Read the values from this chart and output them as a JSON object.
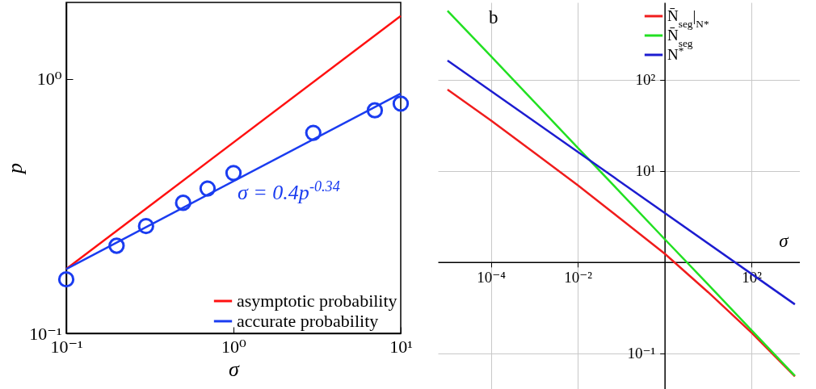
{
  "chart_data": [
    {
      "type": "line",
      "xlabel": "σ",
      "ylabel": "p",
      "log": "xy",
      "xlim": [
        0.1,
        10
      ],
      "ylim": [
        0.1,
        2
      ],
      "xticks": [
        {
          "value": 0.1,
          "label": "10⁻¹"
        },
        {
          "value": 1,
          "label": "10⁰"
        },
        {
          "value": 10,
          "label": "10¹"
        }
      ],
      "yticks": [
        {
          "value": 0.1,
          "label": "10⁻¹"
        },
        {
          "value": 1,
          "label": "10⁰"
        }
      ],
      "legend": "bottom right",
      "annotations": [
        "σ = 0.4p$^{-0.34}$"
      ],
      "series": [
        {
          "name": "asymptotic probability",
          "color": "#ff1010",
          "x": [
            0.1,
            10
          ],
          "values": [
            0.179,
            1.77
          ]
        },
        {
          "name": "accurate probability",
          "color": "#1a3cf0",
          "x": [
            0.1,
            10
          ],
          "values": [
            0.179,
            0.877
          ]
        },
        {
          "type": "scatter",
          "marker": "circle",
          "color": "#1a3cf0",
          "x": [
            0.1,
            0.2,
            0.3,
            0.5,
            0.7,
            1,
            3,
            7,
            10
          ],
          "values": [
            0.163,
            0.221,
            0.264,
            0.326,
            0.371,
            0.427,
            0.614,
            0.753,
            0.8
          ]
        }
      ]
    },
    {
      "type": "line",
      "xlabel": "σ",
      "log": "xy",
      "xlim": [
        6e-06,
        1300
      ],
      "ylim": [
        0.04,
        700
      ],
      "grid": true,
      "xticks": [
        {
          "value": 0.0001,
          "label": "10⁻⁴"
        },
        {
          "value": 0.01,
          "label": "10⁻²"
        },
        {
          "value": 100,
          "label": "10²"
        }
      ],
      "yticks": [
        {
          "value": 0.1,
          "label": "10⁻¹"
        },
        {
          "value": 10,
          "label": "10¹"
        },
        {
          "value": 100,
          "label": "10²"
        }
      ],
      "legend": "top right",
      "annotations": [
        "b"
      ],
      "series": [
        {
          "name": "N̄$_{seg}$|$_{N*}$",
          "color": "#f01c1c",
          "x": [
            1e-05,
            0.0001,
            0.001,
            0.01,
            0.1,
            1,
            10,
            100,
            1000
          ],
          "values": [
            77.6,
            35.7,
            15.8,
            6.95,
            2.95,
            1.24,
            0.47,
            0.169,
            0.056
          ]
        },
        {
          "name": "N̄$_{seg}$",
          "color": "#22e022",
          "x": [
            1e-05,
            0.0001,
            0.001,
            0.01,
            0.1,
            1,
            10,
            100,
            1000
          ],
          "values": [
            568,
            180,
            56.8,
            17.9,
            5.68,
            1.79,
            0.57,
            0.18,
            0.057
          ]
        },
        {
          "name": "N$^{*}$",
          "color": "#1c1cd0",
          "x": [
            1e-05,
            1000
          ],
          "values": [
            162,
            0.345
          ]
        }
      ]
    }
  ]
}
